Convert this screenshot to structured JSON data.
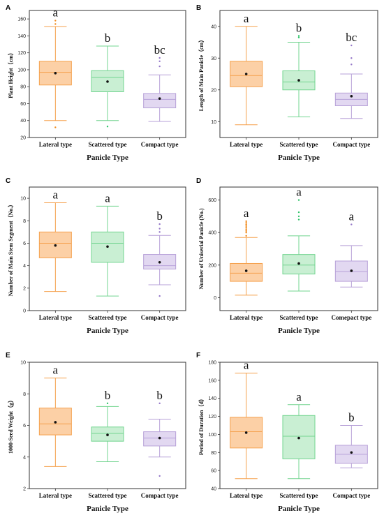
{
  "colors": {
    "lateral": {
      "stroke": "#f5a04c",
      "fill": "#fcd0a6",
      "dot": "#f08a1c"
    },
    "scattered": {
      "stroke": "#72d48f",
      "fill": "#c9efd3",
      "dot": "#30c46a"
    },
    "compact": {
      "stroke": "#b7a1d8",
      "fill": "#e2d8f1",
      "dot": "#9477c8"
    }
  },
  "chart_data": [
    {
      "type": "box",
      "panel": "A",
      "ylabel": "Plant Height（cm）",
      "xlabel": "Panicle Type",
      "categories": [
        "Lateral type",
        "Scattered type",
        "Compact type"
      ],
      "ylim": [
        20,
        170
      ],
      "yticks": [
        20,
        40,
        60,
        80,
        100,
        120,
        140,
        160
      ],
      "boxes": [
        {
          "min": 40,
          "q1": 82,
          "median": 97,
          "q3": 110,
          "max": 151,
          "mean": 96,
          "outliers": [
            32,
            154,
            158
          ],
          "sig": "a"
        },
        {
          "min": 40,
          "q1": 74,
          "median": 91,
          "q3": 99,
          "max": 128,
          "mean": 86,
          "outliers": [
            33
          ],
          "sig": "b"
        },
        {
          "min": 39,
          "q1": 55,
          "median": 65,
          "q3": 72,
          "max": 94,
          "mean": 66,
          "outliers": [
            104,
            110,
            114
          ],
          "sig": "bc"
        }
      ]
    },
    {
      "type": "box",
      "panel": "B",
      "ylabel": "Length of Main Panicle（cm）",
      "xlabel": "Panicle Type",
      "categories": [
        "Lateral type",
        "Scattered type",
        "Compact type"
      ],
      "ylim": [
        5,
        45
      ],
      "yticks": [
        10,
        20,
        30,
        40
      ],
      "boxes": [
        {
          "min": 9,
          "q1": 21,
          "median": 24.5,
          "q3": 29,
          "max": 40,
          "mean": 25,
          "outliers": [],
          "sig": "a"
        },
        {
          "min": 11.5,
          "q1": 20,
          "median": 22.5,
          "q3": 26,
          "max": 35,
          "mean": 23,
          "outliers": [
            36.5,
            37
          ],
          "sig": "b"
        },
        {
          "min": 11,
          "q1": 15,
          "median": 17,
          "q3": 19,
          "max": 25,
          "mean": 18,
          "outliers": [
            28,
            30,
            34
          ],
          "sig": "bc"
        }
      ]
    },
    {
      "type": "box",
      "panel": "C",
      "ylabel": "Number of Main Stem Segment（No.）",
      "xlabel": "Panicle Type",
      "categories": [
        "Lateral type",
        "Scattered type",
        "Compact type"
      ],
      "ylim": [
        0,
        11
      ],
      "yticks": [
        0,
        2,
        4,
        6,
        8,
        10
      ],
      "boxes": [
        {
          "min": 1.7,
          "q1": 4.7,
          "median": 6,
          "q3": 7,
          "max": 9.6,
          "mean": 5.8,
          "outliers": [],
          "sig": "a"
        },
        {
          "min": 1.3,
          "q1": 4.3,
          "median": 6,
          "q3": 7,
          "max": 9.3,
          "mean": 5.7,
          "outliers": [],
          "sig": "a"
        },
        {
          "min": 2.3,
          "q1": 3.7,
          "median": 4,
          "q3": 5,
          "max": 6.7,
          "mean": 4.3,
          "outliers": [
            1.3,
            7,
            7.3,
            7.7
          ],
          "sig": "b"
        }
      ]
    },
    {
      "type": "box",
      "panel": "D",
      "ylabel": "Number of Uniserial Panicle (No.)",
      "xlabel": "Panicle Type",
      "categories": [
        "Lateral type",
        "Scattered type",
        "Comepact type"
      ],
      "ylim": [
        -80,
        680
      ],
      "yticks": [
        0,
        200,
        400,
        600
      ],
      "boxes": [
        {
          "min": 15,
          "q1": 100,
          "median": 150,
          "q3": 210,
          "max": 370,
          "mean": 165,
          "outliers": [
            380,
            400,
            410,
            420,
            430,
            440,
            450,
            460,
            470
          ],
          "sig": "a"
        },
        {
          "min": 40,
          "q1": 145,
          "median": 200,
          "q3": 265,
          "max": 380,
          "mean": 210,
          "outliers": [
            480,
            500,
            525,
            600
          ],
          "sig": "a"
        },
        {
          "min": 65,
          "q1": 100,
          "median": 160,
          "q3": 225,
          "max": 320,
          "mean": 165,
          "outliers": [
            450
          ],
          "sig": "a"
        }
      ]
    },
    {
      "type": "box",
      "panel": "E",
      "ylabel": "1000-Seed Weight（g）",
      "xlabel": "Panicle Type",
      "categories": [
        "Lateral type",
        "Scattered type",
        "Compact type"
      ],
      "ylim": [
        2,
        10
      ],
      "yticks": [
        2,
        4,
        6,
        8,
        10
      ],
      "boxes": [
        {
          "min": 3.4,
          "q1": 5.4,
          "median": 6.1,
          "q3": 7.1,
          "max": 9.0,
          "mean": 6.2,
          "outliers": [],
          "sig": "a"
        },
        {
          "min": 3.7,
          "q1": 5.0,
          "median": 5.5,
          "q3": 5.9,
          "max": 7.2,
          "mean": 5.4,
          "outliers": [
            7.4
          ],
          "sig": "b"
        },
        {
          "min": 4.0,
          "q1": 4.7,
          "median": 5.2,
          "q3": 5.6,
          "max": 6.4,
          "mean": 5.2,
          "outliers": [
            2.8,
            7.4
          ],
          "sig": "b"
        }
      ]
    },
    {
      "type": "box",
      "panel": "F",
      "ylabel": "Period of Duration（d）",
      "xlabel": "Panicle Type",
      "categories": [
        "Lateral type",
        "Scattered type",
        "Compact type"
      ],
      "ylim": [
        40,
        180
      ],
      "yticks": [
        40,
        60,
        80,
        100,
        120,
        140,
        160,
        180
      ],
      "boxes": [
        {
          "min": 51,
          "q1": 85,
          "median": 103,
          "q3": 119,
          "max": 168,
          "mean": 102,
          "outliers": [],
          "sig": "a"
        },
        {
          "min": 51,
          "q1": 73,
          "median": 98,
          "q3": 121,
          "max": 133,
          "mean": 96,
          "outliers": [],
          "sig": "a"
        },
        {
          "min": 63,
          "q1": 68,
          "median": 78,
          "q3": 88,
          "max": 110,
          "mean": 80,
          "outliers": [],
          "sig": "b"
        }
      ]
    }
  ]
}
